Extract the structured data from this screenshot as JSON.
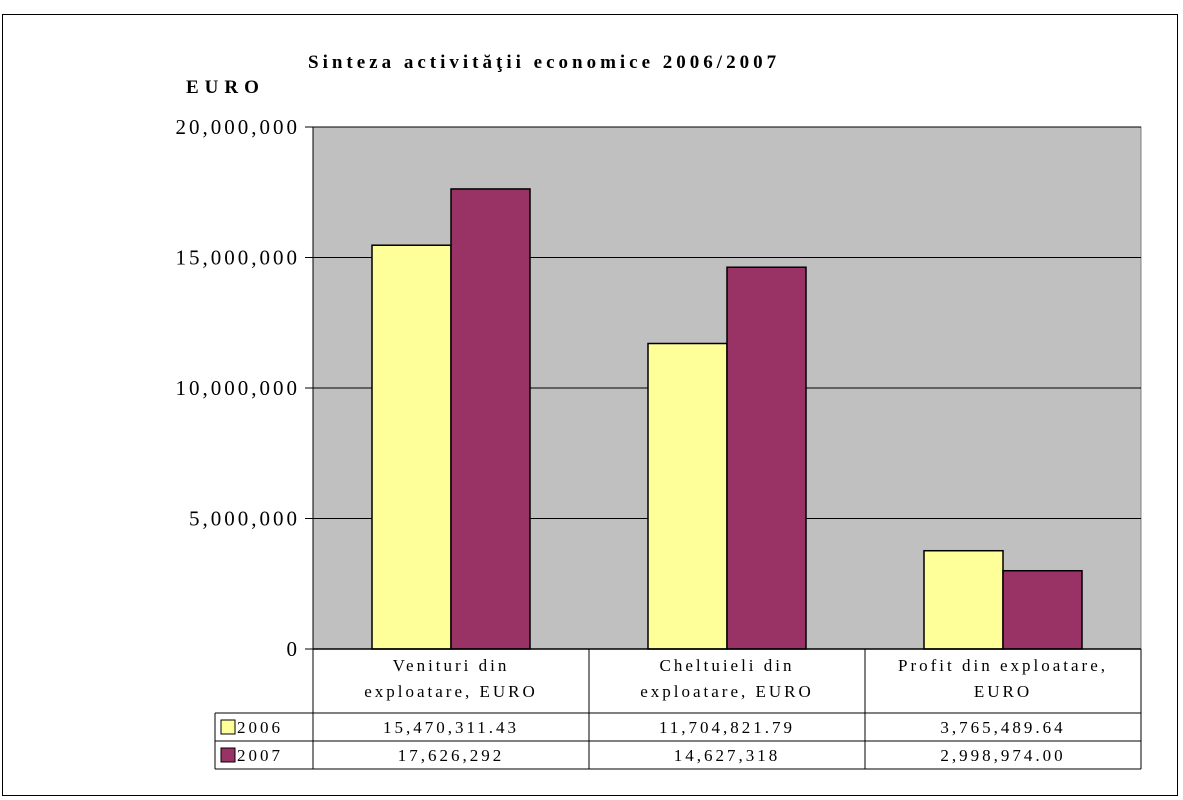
{
  "chart_data": {
    "type": "bar",
    "title": "Sinteza activităţii economice 2006/2007",
    "ylabel": "EURO",
    "xlabel": "",
    "ylim": [
      0,
      20000000
    ],
    "yticks": [
      0,
      5000000,
      10000000,
      15000000,
      20000000
    ],
    "ytick_labels": [
      "0",
      "5,000,000",
      "10,000,000",
      "15,000,000",
      "20,000,000"
    ],
    "categories": [
      [
        "Venituri din",
        "exploatare, EURO"
      ],
      [
        "Cheltuieli din",
        "exploatare, EURO"
      ],
      [
        "Profit din exploatare,",
        "EURO"
      ]
    ],
    "series": [
      {
        "name": "2006",
        "color": "#ffff99",
        "values": [
          15470311.43,
          11704821.79,
          3765489.64
        ],
        "table_labels": [
          "15,470,311.43",
          "11,704,821.79",
          "3,765,489.64"
        ]
      },
      {
        "name": "2007",
        "color": "#993366",
        "values": [
          17626292,
          14627318,
          2998974.0
        ],
        "table_labels": [
          "17,626,292",
          "14,627,318",
          "2,998,974.00"
        ]
      }
    ],
    "grid": true,
    "plot_background": "#c0c0c0",
    "legend": "data-table"
  }
}
